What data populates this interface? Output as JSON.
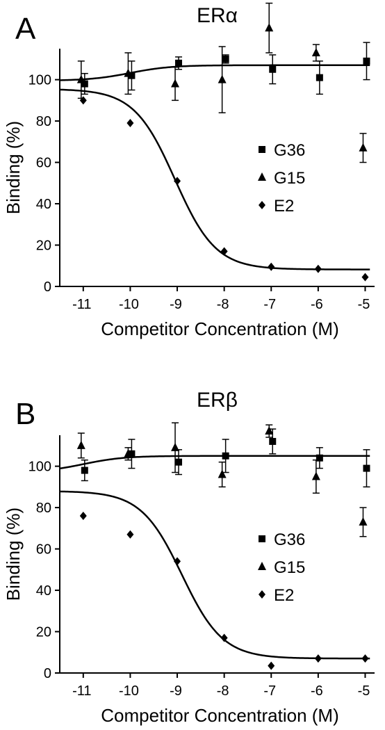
{
  "chart_data": [
    {
      "type": "scatter",
      "panel_letter": "A",
      "title": "ERα",
      "xlabel": "Competitor Concentration (M)",
      "ylabel": "Binding (%)",
      "xlim": [
        -11.5,
        -4.8
      ],
      "ylim": [
        0,
        115
      ],
      "x_ticks": [
        -11,
        -10,
        -9,
        -8,
        -7,
        -6,
        -5
      ],
      "y_ticks": [
        0,
        20,
        40,
        60,
        80,
        100
      ],
      "legend_position": "right",
      "grid": false,
      "series": [
        {
          "name": "G36",
          "marker": "square",
          "x": [
            -11,
            -10,
            -9,
            -8,
            -7,
            -6,
            -5
          ],
          "y": [
            98,
            102,
            108,
            110,
            105,
            101,
            109
          ],
          "error": [
            5,
            7,
            3,
            2,
            7,
            8,
            9
          ]
        },
        {
          "name": "G15",
          "marker": "triangle",
          "x": [
            -11,
            -10,
            -9,
            -8,
            -7,
            -6,
            -5
          ],
          "y": [
            100,
            103,
            98,
            100,
            125,
            113,
            67
          ],
          "error": [
            9,
            10,
            8,
            16,
            12,
            4,
            7
          ]
        },
        {
          "name": "E2",
          "marker": "diamond",
          "x": [
            -11,
            -10,
            -9,
            -8,
            -7,
            -6,
            -5
          ],
          "y": [
            90,
            79,
            51,
            17,
            9.5,
            8.5,
            4.5
          ],
          "error": [
            0,
            0,
            0,
            0,
            0,
            0,
            0
          ]
        }
      ],
      "fit_curves": [
        {
          "series": "G36",
          "bottom": 99.5,
          "top": 107,
          "log_ec50": -10.0,
          "hill": 1.0
        },
        {
          "series": "E2",
          "bottom": 95.5,
          "top": 8.2,
          "log_ec50": -9.05,
          "hill": 1.0
        }
      ]
    },
    {
      "type": "scatter",
      "panel_letter": "B",
      "title": "ERβ",
      "xlabel": "Competitor Concentration (M)",
      "ylabel": "Binding (%)",
      "xlim": [
        -11.5,
        -4.8
      ],
      "ylim": [
        0,
        115
      ],
      "x_ticks": [
        -11,
        -10,
        -9,
        -8,
        -7,
        -6,
        -5
      ],
      "y_ticks": [
        0,
        20,
        40,
        60,
        80,
        100
      ],
      "legend_position": "right",
      "grid": false,
      "series": [
        {
          "name": "G36",
          "marker": "square",
          "x": [
            -11,
            -10,
            -9,
            -8,
            -7,
            -6,
            -5
          ],
          "y": [
            98,
            106,
            102,
            105,
            112,
            104,
            99
          ],
          "error": [
            5,
            7,
            6,
            8,
            6,
            5,
            9
          ]
        },
        {
          "name": "G15",
          "marker": "triangle",
          "x": [
            -11,
            -10,
            -9,
            -8,
            -7,
            -6,
            -5
          ],
          "y": [
            110,
            106,
            109,
            96,
            117,
            95,
            73
          ],
          "error": [
            6,
            3,
            12,
            6,
            3,
            8,
            7
          ]
        },
        {
          "name": "E2",
          "marker": "diamond",
          "x": [
            -11,
            -10,
            -9,
            -8,
            -7,
            -6,
            -5
          ],
          "y": [
            76,
            67,
            54,
            17,
            3.5,
            7,
            7
          ],
          "error": [
            0,
            0,
            0,
            0,
            0,
            0,
            0
          ]
        }
      ],
      "fit_curves": [
        {
          "series": "G36",
          "bottom": 97,
          "top": 105,
          "log_ec50": -11.0,
          "hill": 1.0
        },
        {
          "series": "E2",
          "bottom": 88,
          "top": 7,
          "log_ec50": -8.9,
          "hill": 1.0
        }
      ]
    }
  ]
}
